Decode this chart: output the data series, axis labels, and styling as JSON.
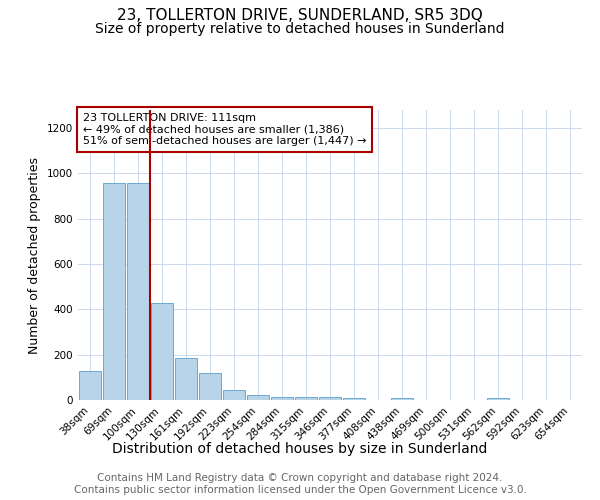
{
  "title": "23, TOLLERTON DRIVE, SUNDERLAND, SR5 3DQ",
  "subtitle": "Size of property relative to detached houses in Sunderland",
  "xlabel": "Distribution of detached houses by size in Sunderland",
  "ylabel": "Number of detached properties",
  "categories": [
    "38sqm",
    "69sqm",
    "100sqm",
    "130sqm",
    "161sqm",
    "192sqm",
    "223sqm",
    "254sqm",
    "284sqm",
    "315sqm",
    "346sqm",
    "377sqm",
    "408sqm",
    "438sqm",
    "469sqm",
    "500sqm",
    "531sqm",
    "562sqm",
    "592sqm",
    "623sqm",
    "654sqm"
  ],
  "values": [
    130,
    960,
    960,
    430,
    185,
    120,
    42,
    20,
    15,
    15,
    15,
    10,
    0,
    10,
    0,
    0,
    0,
    10,
    0,
    0,
    0
  ],
  "bar_color": "#b8d4e8",
  "bar_edge_color": "#6aaad4",
  "red_line_x": 2.5,
  "annotation_text": "23 TOLLERTON DRIVE: 111sqm\n← 49% of detached houses are smaller (1,386)\n51% of semi-detached houses are larger (1,447) →",
  "annotation_box_color": "#aa0000",
  "ylim": [
    0,
    1280
  ],
  "yticks": [
    0,
    200,
    400,
    600,
    800,
    1000,
    1200
  ],
  "footer_line1": "Contains HM Land Registry data © Crown copyright and database right 2024.",
  "footer_line2": "Contains public sector information licensed under the Open Government Licence v3.0.",
  "title_fontsize": 11,
  "subtitle_fontsize": 10,
  "xlabel_fontsize": 10,
  "ylabel_fontsize": 9,
  "tick_fontsize": 7.5,
  "annotation_fontsize": 8,
  "footer_fontsize": 7.5,
  "background_color": "#ffffff",
  "grid_color": "#ccd8ec"
}
